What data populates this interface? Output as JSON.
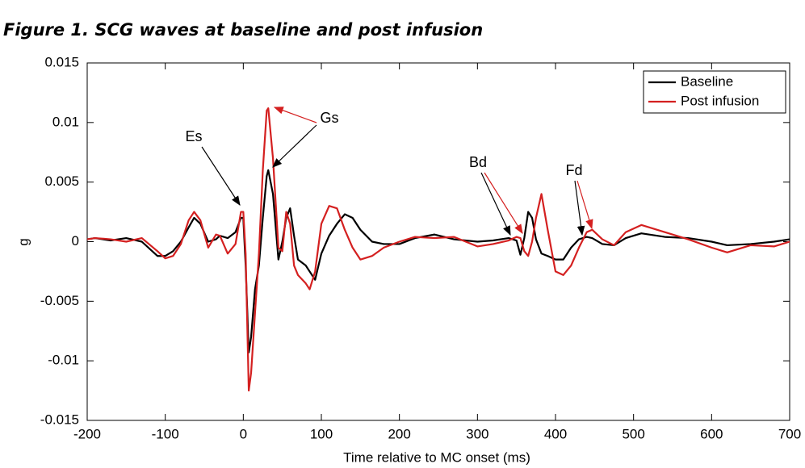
{
  "chart_data": {
    "type": "line",
    "title": "Figure 1. SCG waves at baseline and post infusion",
    "x_label": "Time relative to MC onset (ms)",
    "y_label": "g",
    "x": [
      -200,
      -190,
      -170,
      -150,
      -130,
      -110,
      -100,
      -90,
      -80,
      -70,
      -63,
      -55,
      -45,
      -35,
      -30,
      -20,
      -10,
      -3,
      0,
      3,
      7,
      10,
      15,
      20,
      25,
      30,
      32,
      38,
      45,
      50,
      55,
      60,
      65,
      70,
      80,
      85,
      92,
      100,
      110,
      120,
      130,
      140,
      150,
      165,
      180,
      200,
      220,
      245,
      270,
      300,
      320,
      340,
      350,
      355,
      360,
      365,
      370,
      375,
      382,
      390,
      400,
      410,
      420,
      430,
      440,
      447,
      460,
      475,
      490,
      510,
      540,
      570,
      600,
      620,
      650,
      680,
      700
    ],
    "series": [
      {
        "name": "Baseline",
        "color": "#000000",
        "values": [
          0.0002,
          0.0003,
          0.0001,
          0.0003,
          0,
          -0.0012,
          -0.0012,
          -0.0008,
          0,
          0.0012,
          0.002,
          0.0015,
          0,
          0.0002,
          0.0005,
          0.0003,
          0.0008,
          0.002,
          0.002,
          -0.002,
          -0.0093,
          -0.008,
          -0.004,
          -0.002,
          0.002,
          0.0055,
          0.006,
          0.004,
          -0.0015,
          0,
          0.002,
          0.0028,
          0.0005,
          -0.0015,
          -0.002,
          -0.0025,
          -0.0032,
          -0.001,
          0.0005,
          0.0015,
          0.0023,
          0.002,
          0.001,
          0,
          -0.0002,
          -0.0002,
          0.0003,
          0.0006,
          0.0002,
          0,
          0.0001,
          0.0003,
          0.0001,
          -0.0011,
          0.0003,
          0.0025,
          0.002,
          0.0002,
          -0.001,
          -0.0012,
          -0.0015,
          -0.0015,
          -0.0005,
          0.0002,
          0.0004,
          0.0003,
          -0.0002,
          -0.0003,
          0.0003,
          0.0007,
          0.0004,
          0.0003,
          0,
          -0.0003,
          -0.0002,
          0,
          0.0002
        ]
      },
      {
        "name": "Post infusion",
        "color": "#d42020",
        "values": [
          0.0002,
          0.0003,
          0.0002,
          0,
          0.0003,
          -0.0008,
          -0.0014,
          -0.0012,
          -0.0002,
          0.0018,
          0.0025,
          0.0018,
          -0.0005,
          0.0006,
          0.0005,
          -0.001,
          -0.0002,
          0.0025,
          0.0025,
          -0.001,
          -0.0125,
          -0.011,
          -0.006,
          -0.001,
          0.006,
          0.011,
          0.0112,
          0.007,
          -0.0005,
          -0.0008,
          0.0025,
          0.0015,
          -0.002,
          -0.0028,
          -0.0035,
          -0.004,
          -0.0025,
          0.0015,
          0.003,
          0.0028,
          0.001,
          -0.0005,
          -0.0015,
          -0.0012,
          -0.0005,
          0,
          0.0004,
          0.0003,
          0.0004,
          -0.0004,
          -0.0002,
          0.0001,
          0.0004,
          0.0003,
          -0.0008,
          -0.0012,
          0,
          0.002,
          0.004,
          0.001,
          -0.0025,
          -0.0028,
          -0.002,
          -0.0005,
          0.0008,
          0.001,
          0.0002,
          -0.0003,
          0.0008,
          0.0014,
          0.0008,
          0.0002,
          -0.0005,
          -0.0009,
          -0.0003,
          -0.0004,
          0
        ]
      }
    ],
    "xlim": [
      -200,
      700
    ],
    "xticks": [
      -200,
      -100,
      0,
      100,
      200,
      300,
      400,
      500,
      600,
      700
    ],
    "ylim": [
      -0.015,
      0.015
    ],
    "yticks": [
      -0.015,
      -0.01,
      -0.005,
      0,
      0.005,
      0.01,
      0.015
    ],
    "legend": "upper right",
    "grid": false,
    "annotations": [
      "Es",
      "Gs",
      "Bd",
      "Fd"
    ]
  }
}
